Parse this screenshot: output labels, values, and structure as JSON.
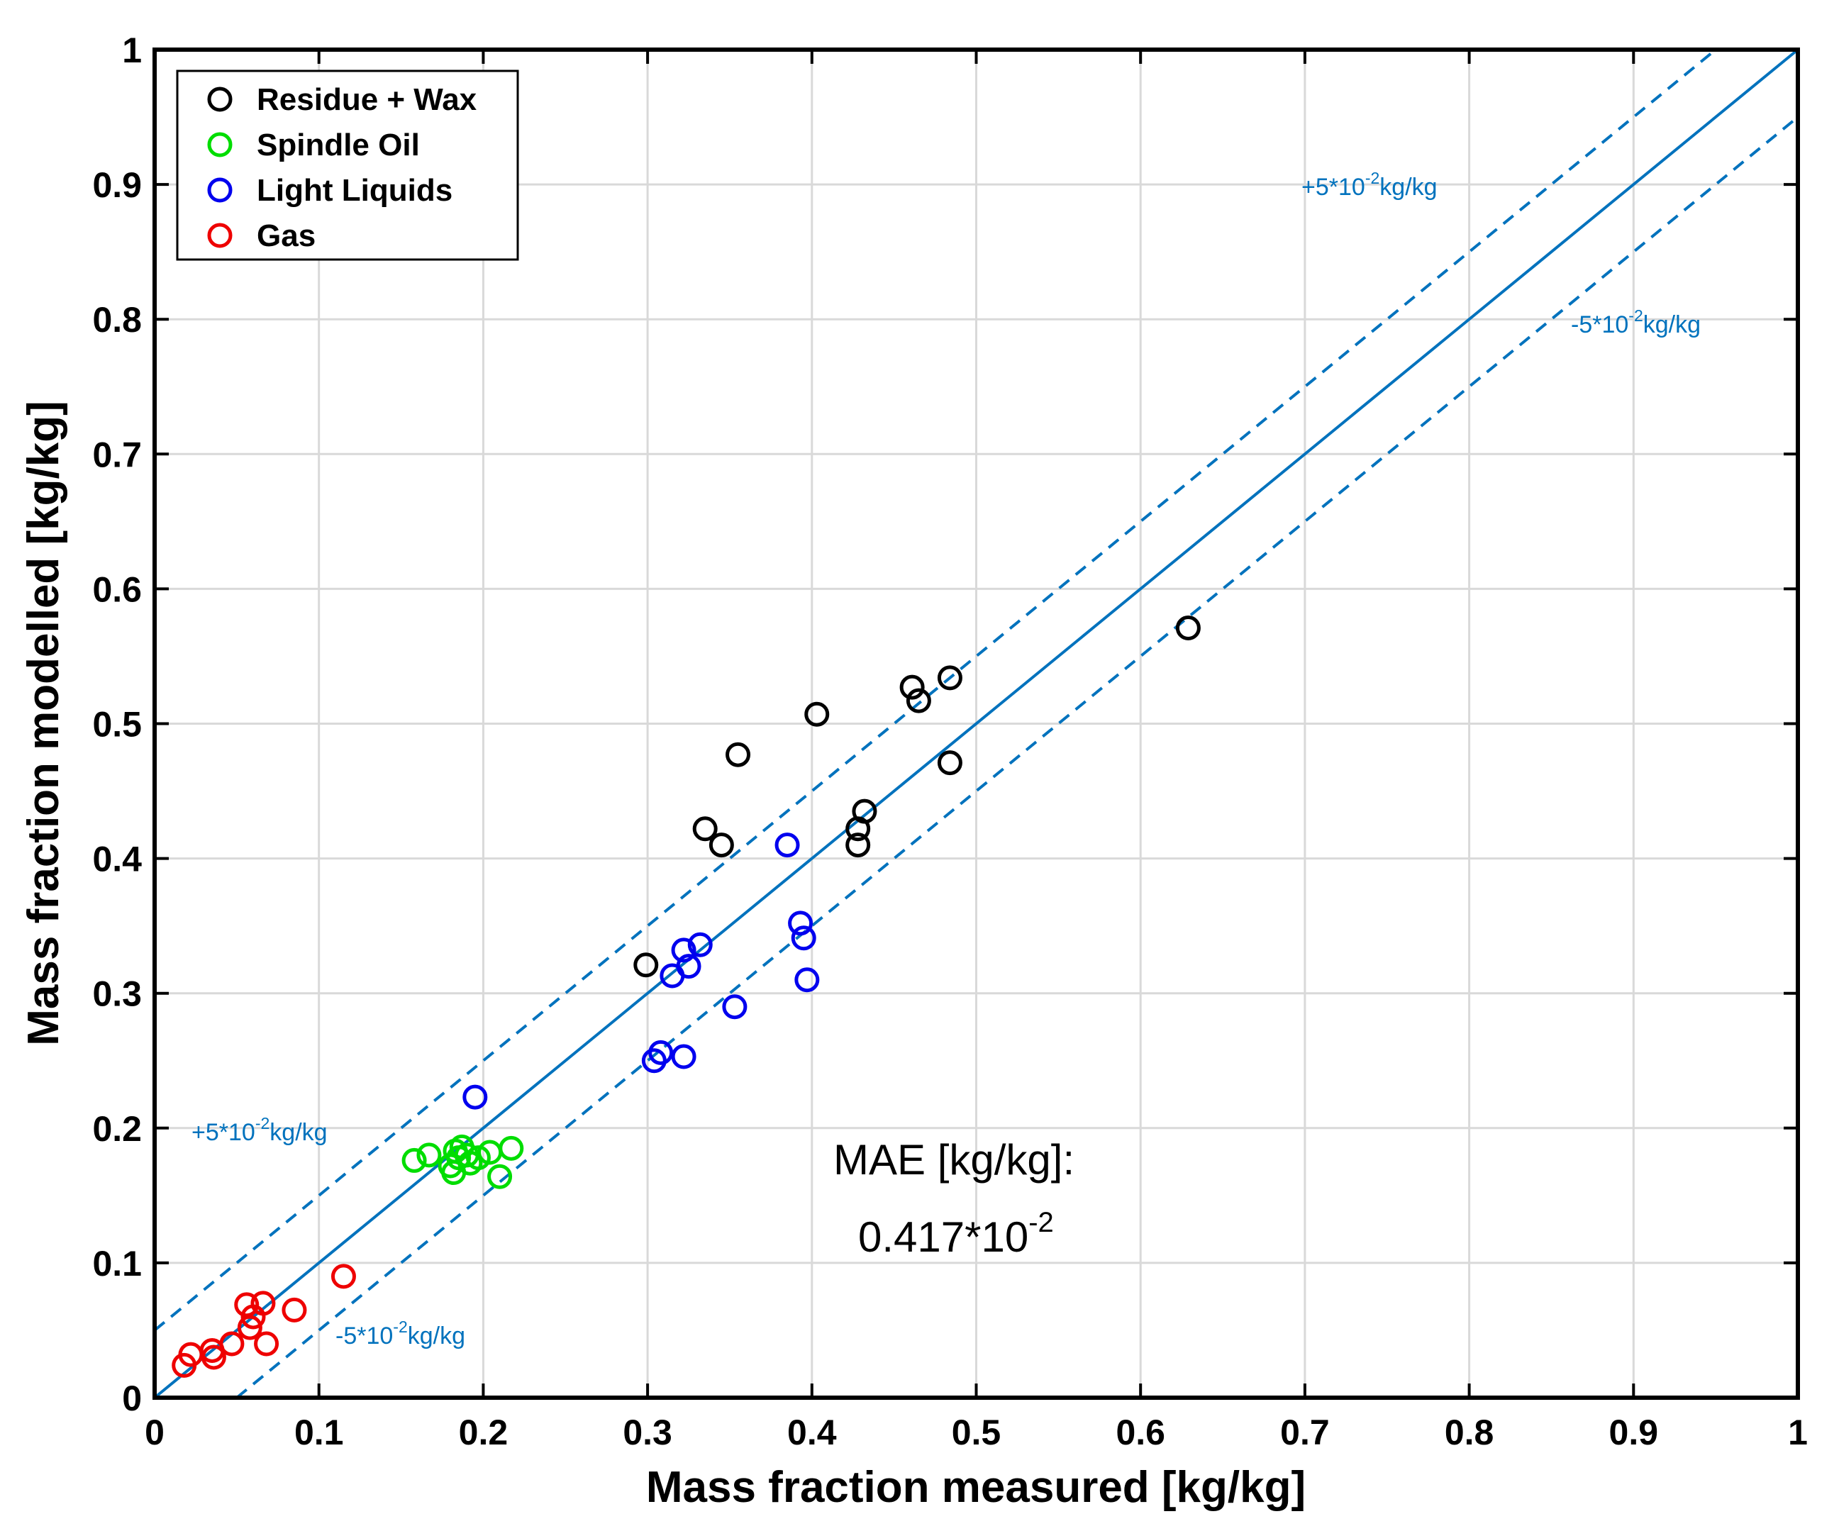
{
  "chart_data": {
    "type": "scatter",
    "title": "",
    "xlabel": "Mass fraction measured [kg/kg]",
    "ylabel": "Mass fraction modelled [kg/kg]",
    "xlim": [
      0,
      1
    ],
    "ylim": [
      0,
      1
    ],
    "xticks": [
      "0",
      "0.1",
      "0.2",
      "0.3",
      "0.4",
      "0.5",
      "0.6",
      "0.7",
      "0.8",
      "0.9",
      "1"
    ],
    "yticks": [
      "0",
      "0.1",
      "0.2",
      "0.3",
      "0.4",
      "0.5",
      "0.6",
      "0.7",
      "0.8",
      "0.9",
      "1"
    ],
    "grid": true,
    "legend_position": "top-left",
    "series": [
      {
        "name": "Residue + Wax",
        "color": "#000000",
        "marker": "open-circle",
        "points": [
          [
            0.299,
            0.321
          ],
          [
            0.335,
            0.422
          ],
          [
            0.345,
            0.41
          ],
          [
            0.355,
            0.477
          ],
          [
            0.403,
            0.507
          ],
          [
            0.428,
            0.422
          ],
          [
            0.428,
            0.41
          ],
          [
            0.432,
            0.435
          ],
          [
            0.461,
            0.527
          ],
          [
            0.465,
            0.517
          ],
          [
            0.484,
            0.534
          ],
          [
            0.484,
            0.471
          ],
          [
            0.629,
            0.571
          ]
        ]
      },
      {
        "name": "Spindle Oil",
        "color": "#00DD00",
        "marker": "open-circle",
        "points": [
          [
            0.158,
            0.176
          ],
          [
            0.167,
            0.18
          ],
          [
            0.18,
            0.172
          ],
          [
            0.182,
            0.167
          ],
          [
            0.183,
            0.183
          ],
          [
            0.185,
            0.178
          ],
          [
            0.187,
            0.186
          ],
          [
            0.19,
            0.18
          ],
          [
            0.192,
            0.174
          ],
          [
            0.197,
            0.178
          ],
          [
            0.204,
            0.182
          ],
          [
            0.21,
            0.164
          ],
          [
            0.217,
            0.185
          ]
        ]
      },
      {
        "name": "Light Liquids",
        "color": "#0000EE",
        "marker": "open-circle",
        "points": [
          [
            0.195,
            0.223
          ],
          [
            0.304,
            0.25
          ],
          [
            0.308,
            0.256
          ],
          [
            0.315,
            0.313
          ],
          [
            0.322,
            0.332
          ],
          [
            0.322,
            0.253
          ],
          [
            0.325,
            0.32
          ],
          [
            0.332,
            0.336
          ],
          [
            0.353,
            0.29
          ],
          [
            0.385,
            0.41
          ],
          [
            0.393,
            0.352
          ],
          [
            0.395,
            0.341
          ],
          [
            0.397,
            0.31
          ]
        ]
      },
      {
        "name": "Gas",
        "color": "#EE0000",
        "marker": "open-circle",
        "points": [
          [
            0.018,
            0.024
          ],
          [
            0.022,
            0.032
          ],
          [
            0.035,
            0.035
          ],
          [
            0.036,
            0.03
          ],
          [
            0.047,
            0.04
          ],
          [
            0.056,
            0.069
          ],
          [
            0.058,
            0.052
          ],
          [
            0.06,
            0.06
          ],
          [
            0.066,
            0.07
          ],
          [
            0.068,
            0.04
          ],
          [
            0.085,
            0.065
          ],
          [
            0.115,
            0.09
          ]
        ]
      }
    ],
    "reference_lines": [
      {
        "name": "y = x",
        "style": "solid",
        "color": "#0072BD",
        "offset": 0
      },
      {
        "name": "+5*10^-2 kg/kg",
        "style": "dashed",
        "color": "#0072BD",
        "offset": 0.05
      },
      {
        "name": "-5*10^-2 kg/kg",
        "style": "dashed",
        "color": "#0072BD",
        "offset": -0.05
      }
    ],
    "band_labels": {
      "upper": {
        "base": "+5*10",
        "exp": "-2",
        "unit": "kg/kg"
      },
      "lower": {
        "base": "-5*10",
        "exp": "-2",
        "unit": "kg/kg"
      }
    },
    "annotation": {
      "line1": "MAE [kg/kg]:",
      "line2_base": "0.417*10",
      "line2_exp": "-2"
    }
  }
}
